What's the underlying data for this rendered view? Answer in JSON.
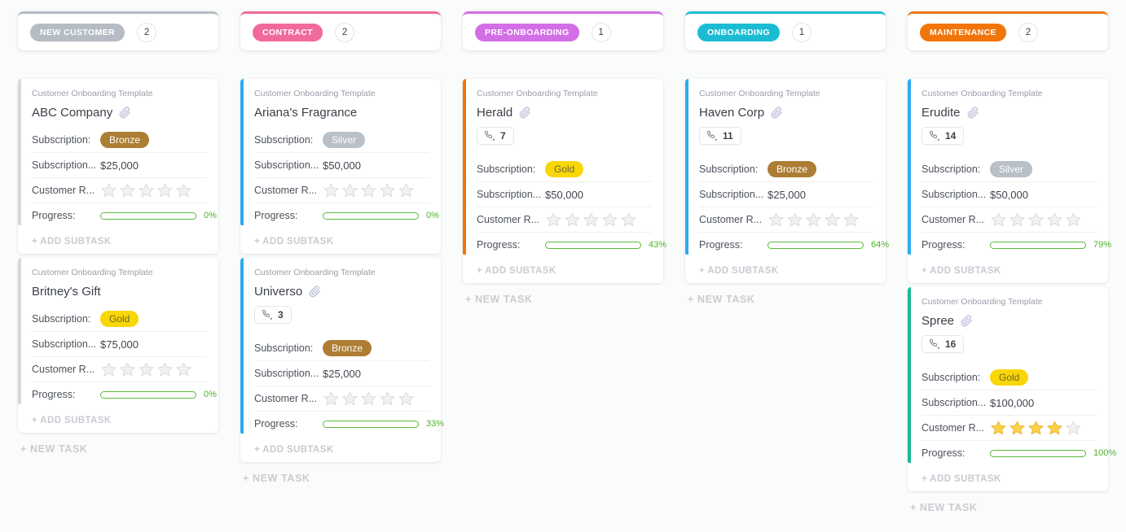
{
  "page": {
    "background": "#fafbfb"
  },
  "rating_max": 5,
  "labels": {
    "template_label": "Customer Onboarding Template",
    "subscription": "Subscription:",
    "subscription_cost": "Subscription...",
    "customer_rating": "Customer R...",
    "progress": "Progress:",
    "add_subtask": "+ ADD SUBTASK",
    "new_task": "+ NEW TASK"
  },
  "tier_colors": {
    "Bronze": {
      "bg": "#ad7d33",
      "fg": "#ffffff"
    },
    "Silver": {
      "bg": "#b9c0c8",
      "fg": "#ffffff"
    },
    "Gold": {
      "bg": "#f9d606",
      "fg": "#6e6833"
    }
  },
  "progress_colors": {
    "fill": "#5cc234",
    "border": "#5cb83c",
    "text": "#4db32b"
  },
  "columns": [
    {
      "name": "NEW CUSTOMER",
      "count": "2",
      "color": "#b6bcc3",
      "cards": [
        {
          "name": "ABC Company",
          "attachment": true,
          "phone": null,
          "bar_color": "#d6d9dd",
          "tier": "Bronze",
          "amount": "$25,000",
          "rating": 0,
          "progress": 0,
          "progress_text": "0%"
        },
        {
          "name": "Britney's Gift",
          "attachment": false,
          "phone": null,
          "bar_color": "#d6d9dd",
          "tier": "Gold",
          "amount": "$75,000",
          "rating": 0,
          "progress": 0,
          "progress_text": "0%"
        }
      ]
    },
    {
      "name": "CONTRACT",
      "count": "2",
      "color": "#f2699c",
      "cards": [
        {
          "name": "Ariana's Fragrance",
          "attachment": false,
          "phone": null,
          "bar_color": "#2bacf2",
          "tier": "Silver",
          "amount": "$50,000",
          "rating": 0,
          "progress": 0,
          "progress_text": "0%"
        },
        {
          "name": "Universo",
          "attachment": true,
          "phone": "3",
          "bar_color": "#2bacf2",
          "tier": "Bronze",
          "amount": "$25,000",
          "rating": 0,
          "progress": 33,
          "progress_text": "33%"
        }
      ]
    },
    {
      "name": "PRE-ONBOARDING",
      "count": "1",
      "color": "#d36fe6",
      "cards": [
        {
          "name": "Herald",
          "attachment": true,
          "phone": "7",
          "bar_color": "#f2750a",
          "tier": "Gold",
          "amount": "$50,000",
          "rating": 0,
          "progress": 43,
          "progress_text": "43%"
        }
      ]
    },
    {
      "name": "ONBOARDING",
      "count": "1",
      "color": "#1bbcd3",
      "cards": [
        {
          "name": "Haven Corp",
          "attachment": true,
          "phone": "11",
          "bar_color": "#2bacf2",
          "tier": "Bronze",
          "amount": "$25,000",
          "rating": 0,
          "progress": 64,
          "progress_text": "64%"
        }
      ]
    },
    {
      "name": "MAINTENANCE",
      "count": "2",
      "color": "#f2750a",
      "cards": [
        {
          "name": "Erudite",
          "attachment": true,
          "phone": "14",
          "bar_color": "#2bacf2",
          "tier": "Silver",
          "amount": "$50,000",
          "rating": 0,
          "progress": 79,
          "progress_text": "79%"
        },
        {
          "name": "Spree",
          "attachment": true,
          "phone": "16",
          "bar_color": "#19b895",
          "tier": "Gold",
          "amount": "$100,000",
          "rating": 4,
          "progress": 100,
          "progress_text": "100%"
        }
      ]
    }
  ]
}
